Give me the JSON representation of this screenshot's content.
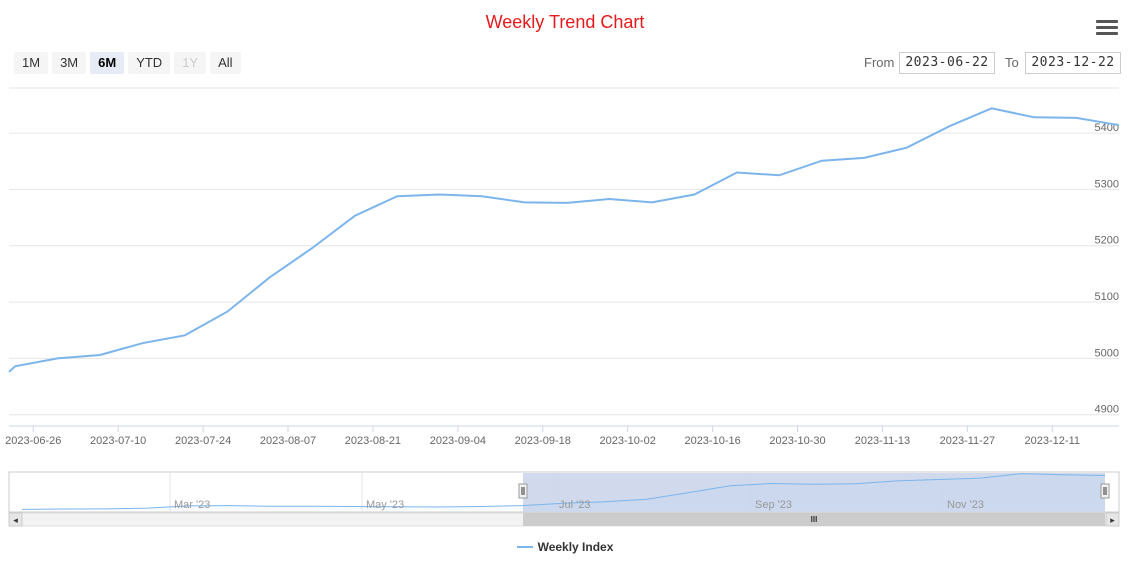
{
  "chart_data": {
    "type": "line",
    "title": "Weekly Trend Chart",
    "series": [
      {
        "name": "Weekly Index",
        "color": "#7cb5ec",
        "x": [
          "2023-06-22",
          "2023-06-23",
          "2023-06-30",
          "2023-07-07",
          "2023-07-14",
          "2023-07-21",
          "2023-07-28",
          "2023-08-04",
          "2023-08-11",
          "2023-08-18",
          "2023-08-25",
          "2023-09-01",
          "2023-09-08",
          "2023-09-15",
          "2023-09-22",
          "2023-09-29",
          "2023-10-06",
          "2023-10-13",
          "2023-10-20",
          "2023-10-27",
          "2023-11-03",
          "2023-11-10",
          "2023-11-17",
          "2023-11-24",
          "2023-12-01",
          "2023-12-08",
          "2023-12-15",
          "2023-12-22"
        ],
        "values": [
          4976,
          4986,
          5000,
          5006,
          5027,
          5041,
          5083,
          5144,
          5196,
          5253,
          5288,
          5291,
          5288,
          5277,
          5276,
          5283,
          5277,
          5291,
          5330,
          5325,
          5351,
          5356,
          5374,
          5412,
          5444,
          5428,
          5427,
          5414
        ]
      }
    ],
    "xaxis": {
      "range": [
        "2023-06-22",
        "2023-12-22"
      ],
      "tick_labels": [
        "2023-06-26",
        "2023-07-10",
        "2023-07-24",
        "2023-08-07",
        "2023-08-21",
        "2023-09-04",
        "2023-09-18",
        "2023-10-02",
        "2023-10-16",
        "2023-10-30",
        "2023-11-13",
        "2023-11-27",
        "2023-12-11"
      ]
    },
    "yaxis": {
      "ylim": [
        4880,
        5480
      ],
      "ticks": [
        4900,
        5000,
        5100,
        5200,
        5300,
        5400
      ],
      "side": "right"
    },
    "grid": true,
    "legend": "bottom-center"
  },
  "navigator": {
    "labels": [
      "Mar '23",
      "May '23",
      "Jul '23",
      "Sep '23",
      "Nov '23"
    ],
    "series_values": [
      4880,
      4885,
      4888,
      4900,
      4935,
      4940,
      4930,
      4928,
      4925,
      4920,
      4918,
      4925,
      4940,
      4976,
      5000,
      5040,
      5144,
      5253,
      5288,
      5277,
      5283,
      5330,
      5351,
      5374,
      5444,
      5427,
      5414
    ]
  },
  "controls": {
    "range_buttons": [
      {
        "label": "1M",
        "state": "normal"
      },
      {
        "label": "3M",
        "state": "normal"
      },
      {
        "label": "6M",
        "state": "selected"
      },
      {
        "label": "YTD",
        "state": "normal"
      },
      {
        "label": "1Y",
        "state": "disabled"
      },
      {
        "label": "All",
        "state": "normal"
      }
    ],
    "from_label": "From",
    "from_value": "2023-06-22",
    "to_label": "To",
    "to_value": "2023-12-22"
  },
  "scrollbar": {
    "left_arrow": "◂",
    "right_arrow": "▸",
    "grip": "III"
  },
  "colors": {
    "title": "#e41a1c",
    "series": "#7cb5ec",
    "navigator_mask": "#ccd6eb",
    "grid": "#e6e6e6"
  }
}
